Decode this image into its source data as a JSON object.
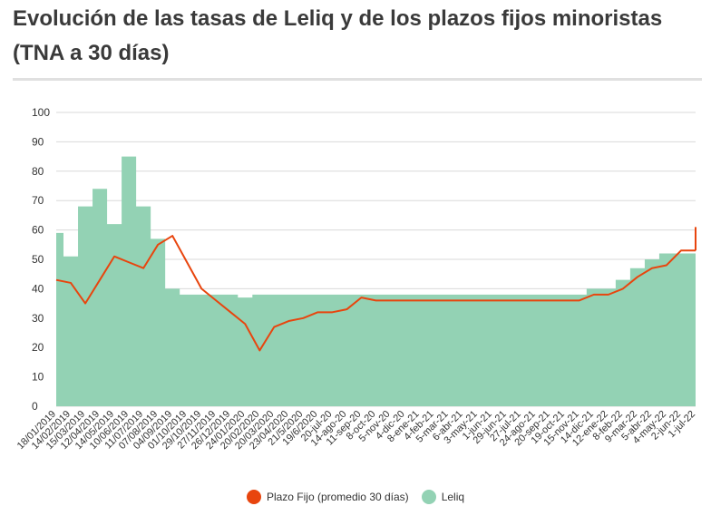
{
  "chart_data": {
    "type": "area+line",
    "title": "Evolución de las tasas de Leliq y de los plazos fijos minoristas (TNA a 30 días)",
    "xlabel": "",
    "ylabel": "",
    "ylim": [
      0,
      100
    ],
    "yticks": [
      0,
      10,
      20,
      30,
      40,
      50,
      60,
      70,
      80,
      90,
      100
    ],
    "categories": [
      "18/01/2019",
      "14/02/2019",
      "15/03/2019",
      "12/04/2019",
      "14/05/2019",
      "10/06/2019",
      "11/07/2019",
      "07/08/2019",
      "04/09/2019",
      "01/10/2019",
      "29/10/2019",
      "27/11/2019",
      "26/12/2019",
      "24/01/2020",
      "20/02/2020",
      "20/03/2020",
      "23/04/2020",
      "21/5/2020",
      "19/6/2020",
      "20-jul-20",
      "14-ago-20",
      "11-sep-20",
      "8-oct-20",
      "5-nov-20",
      "4-dic-20",
      "8-ene-21",
      "4-feb-21",
      "5-mar-21",
      "6-abr-21",
      "3-may-21",
      "1-jun-21",
      "29-jun-21",
      "27-jul-21",
      "24-ago-21",
      "20-sep-21",
      "19-oct-21",
      "15-nov-21",
      "14-dic-21",
      "12-ene-22",
      "8-feb-22",
      "9-mar-22",
      "5-abr-22",
      "4-may-22",
      "2-jun-22",
      "1-jul-22"
    ],
    "series": [
      {
        "name": "Leliq",
        "color": "#93d2b4",
        "values": [
          59,
          51,
          68,
          74,
          62,
          85,
          68,
          57,
          40,
          38,
          38,
          38,
          38,
          37,
          38,
          38,
          38,
          38,
          38,
          38,
          38,
          38,
          38,
          38,
          38,
          38,
          38,
          38,
          38,
          38,
          38,
          38,
          38,
          38,
          38,
          38,
          38,
          40,
          40,
          43,
          47,
          50,
          52,
          52,
          52
        ]
      },
      {
        "name": "Plazo Fijo (promedio 30 días)",
        "color": "#e8450e",
        "values": [
          43,
          42,
          35,
          43,
          51,
          49,
          47,
          55,
          58,
          49,
          40,
          36,
          32,
          28,
          19,
          27,
          29,
          30,
          32,
          32,
          33,
          37,
          36,
          36,
          36,
          36,
          36,
          36,
          36,
          36,
          36,
          36,
          36,
          36,
          36,
          36,
          36,
          38,
          38,
          40,
          44,
          47,
          48,
          53,
          53
        ]
      }
    ],
    "legend": "bottom-center"
  }
}
